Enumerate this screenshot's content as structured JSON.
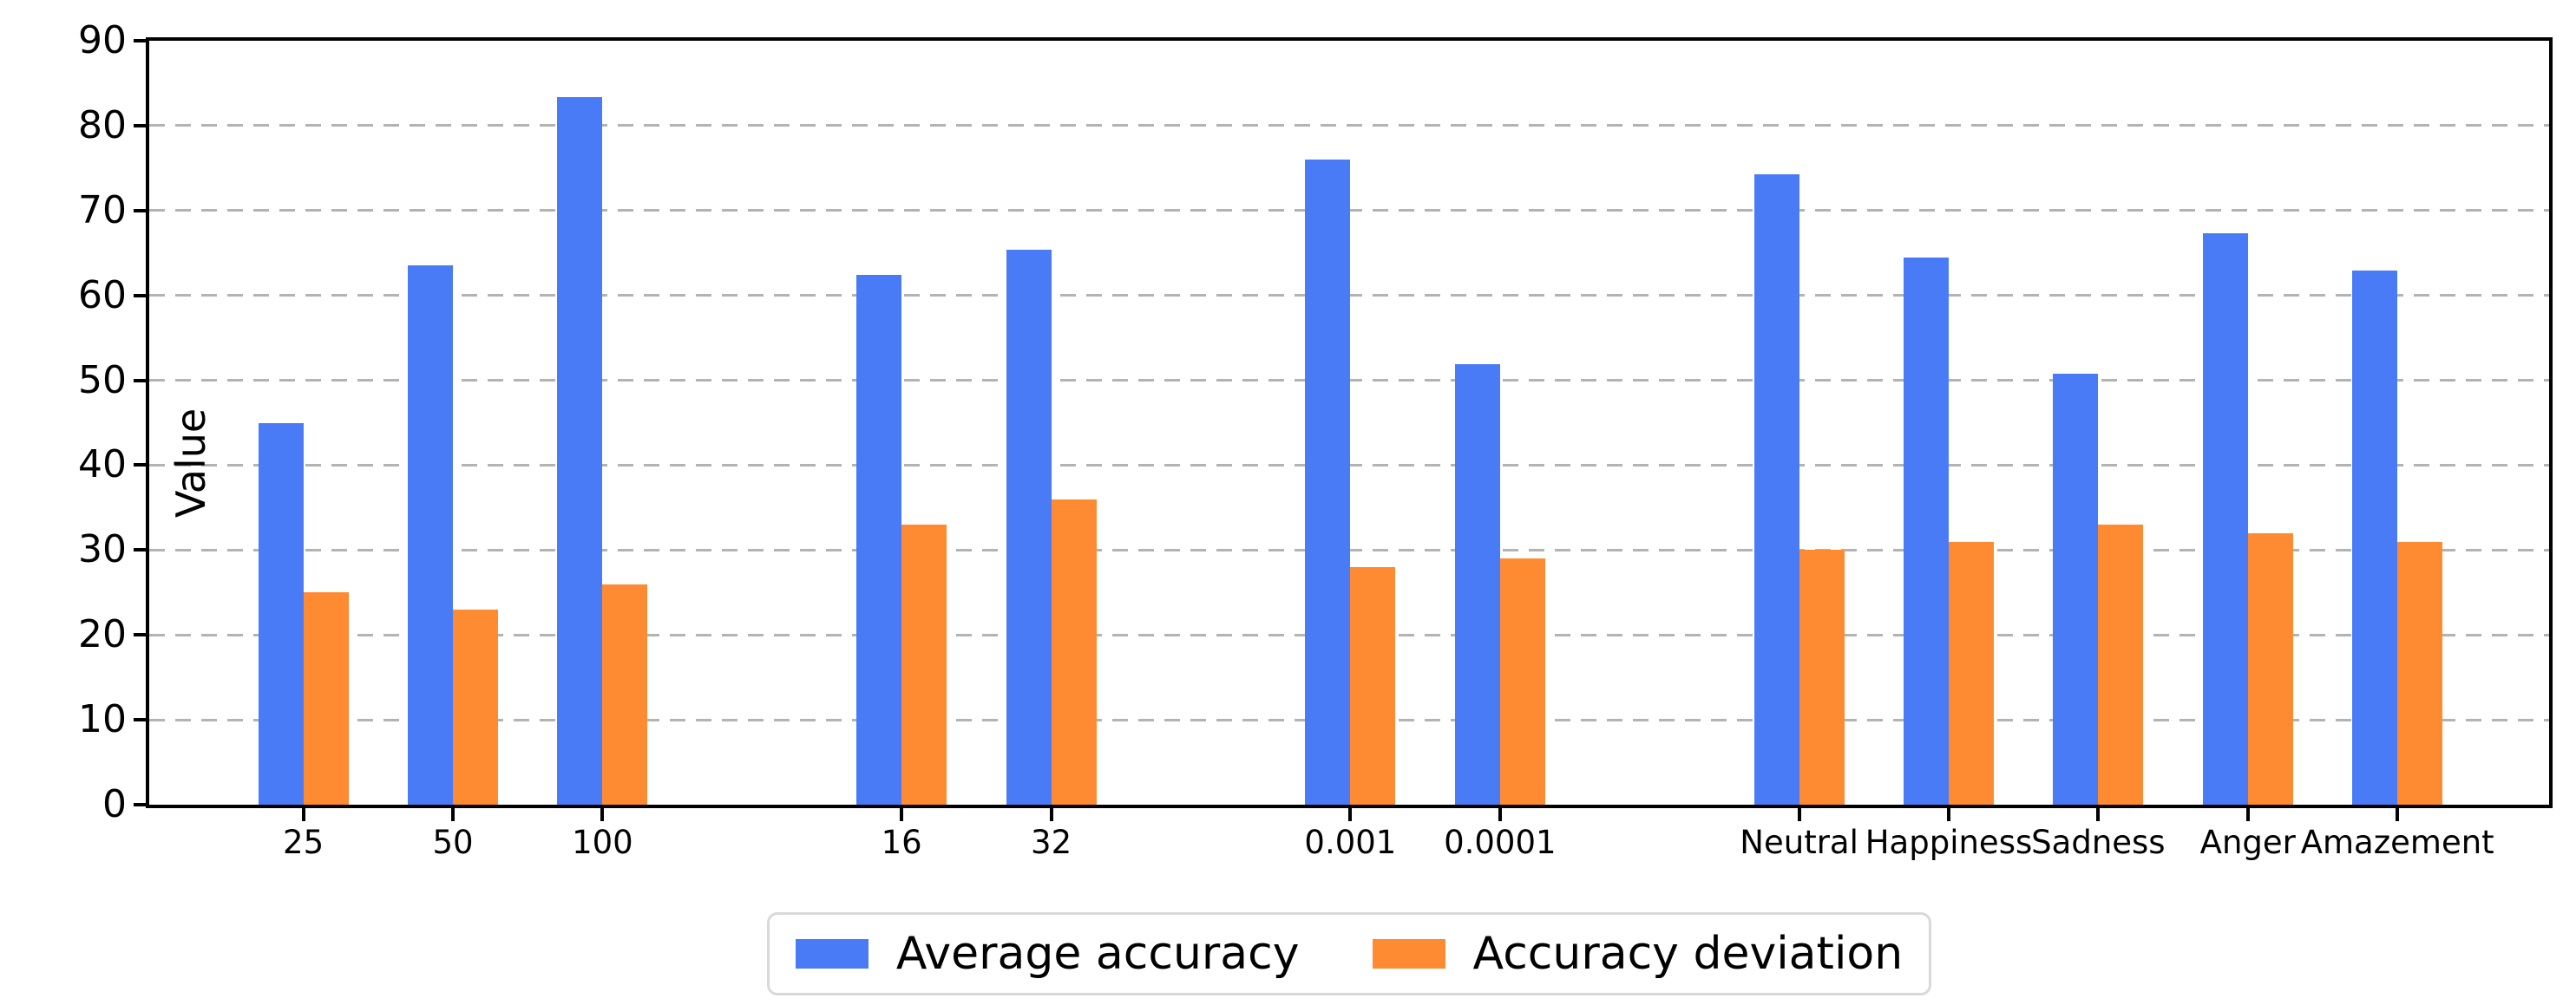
{
  "chart_data": {
    "type": "bar",
    "title": "",
    "xlabel": "",
    "ylabel": "Value",
    "ylim": [
      0,
      90
    ],
    "ytick_step": 10,
    "yticks": [
      0,
      10,
      20,
      30,
      40,
      50,
      60,
      70,
      80,
      90
    ],
    "grid": {
      "axis": "y",
      "style": "dashed",
      "color": "#b3b3b3"
    },
    "legend_position": "bottom-center",
    "categories": [
      "25",
      "50",
      "100",
      "16",
      "32",
      "0.001",
      "0.0001",
      "Neutral",
      "Happiness",
      "Sadness",
      "Anger",
      "Amazement"
    ],
    "category_slots": [
      1,
      2,
      3,
      5,
      6,
      8,
      9,
      11,
      12,
      13,
      14,
      15
    ],
    "total_slots": 17,
    "series": [
      {
        "name": "Average accuracy",
        "color": "#4a7bf7",
        "values": [
          45.0,
          63.5,
          83.4,
          62.4,
          65.4,
          76.0,
          51.9,
          74.3,
          64.5,
          50.8,
          67.3,
          62.9
        ]
      },
      {
        "name": "Accuracy deviation",
        "color": "#fe8b32",
        "values": [
          25,
          23,
          26,
          33,
          36,
          28,
          29,
          30,
          31,
          33,
          32,
          31
        ]
      }
    ]
  },
  "legend": {
    "items": [
      {
        "label": "Average accuracy",
        "color": "#4a7bf7"
      },
      {
        "label": "Accuracy deviation",
        "color": "#fe8b32"
      }
    ]
  },
  "axes": {
    "ylabel": "Value"
  },
  "colors": {
    "average_accuracy": "#4a7bf7",
    "accuracy_deviation": "#fe8b32",
    "gridline": "#b3b3b3",
    "spine": "#000000",
    "legend_border": "#d9d9d9"
  }
}
